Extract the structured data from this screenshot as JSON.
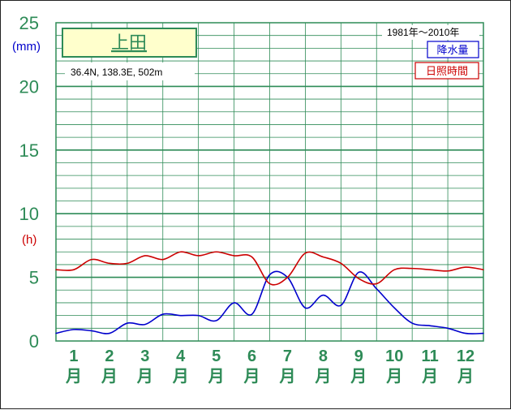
{
  "chart_data": {
    "type": "line",
    "title": "上田",
    "location_info": "36.4N,  138.3E,  502m",
    "period": "1981年〜2010年",
    "y_unit_precip": "(mm)",
    "y_unit_sun": "(h)",
    "ylim": [
      0,
      25
    ],
    "y_ticks": [
      "0",
      "5",
      "10",
      "15",
      "20",
      "25"
    ],
    "month_numbers": [
      "1",
      "2",
      "3",
      "4",
      "5",
      "6",
      "7",
      "8",
      "9",
      "10",
      "11",
      "12"
    ],
    "month_suffix": "月",
    "x": [
      0.0,
      0.5,
      1.0,
      1.5,
      2.0,
      2.5,
      3.0,
      3.5,
      4.0,
      4.5,
      5.0,
      5.5,
      6.0,
      6.5,
      7.0,
      7.5,
      8.0,
      8.5,
      9.0,
      9.5,
      10.0,
      10.5,
      11.0,
      11.5,
      12.0
    ],
    "series": [
      {
        "name": "降水量",
        "color": "#0000cc",
        "values": [
          0.6,
          0.9,
          0.8,
          0.6,
          1.4,
          1.3,
          2.1,
          2.0,
          2.0,
          1.6,
          3.0,
          2.1,
          5.2,
          5.0,
          2.6,
          3.6,
          2.8,
          5.4,
          4.1,
          2.6,
          1.4,
          1.2,
          1.0,
          0.6,
          0.6
        ]
      },
      {
        "name": "日照時間",
        "color": "#cc0000",
        "values": [
          5.6,
          5.6,
          6.4,
          6.1,
          6.1,
          6.7,
          6.4,
          7.0,
          6.7,
          7.0,
          6.7,
          6.6,
          4.5,
          5.0,
          6.9,
          6.6,
          6.1,
          4.9,
          4.5,
          5.6,
          5.7,
          5.6,
          5.5,
          5.8,
          5.6
        ]
      }
    ],
    "grid": true
  }
}
